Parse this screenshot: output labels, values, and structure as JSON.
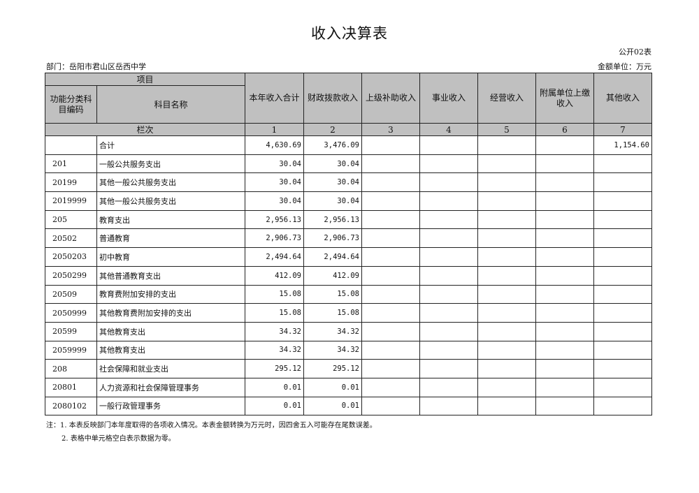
{
  "title": "收入决算表",
  "form_no": "公开02表",
  "department": "部门：岳阳市君山区岳西中学",
  "unit": "金额单位：万元",
  "header": {
    "item": "项目",
    "code": "功能分类科目编码",
    "name": "科目名称",
    "columns": [
      "本年收入合计",
      "财政拨款收入",
      "上级补助收入",
      "事业收入",
      "经营收入",
      "附属单位上缴收入",
      "其他收入"
    ],
    "lanci": "栏次",
    "col_numbers": [
      "1",
      "2",
      "3",
      "4",
      "5",
      "6",
      "7"
    ]
  },
  "rows": [
    {
      "code": "",
      "name": "合计",
      "v": [
        "4,630.69",
        "3,476.09",
        "",
        "",
        "",
        "",
        "1,154.60"
      ]
    },
    {
      "code": "201",
      "name": "一般公共服务支出",
      "v": [
        "30.04",
        "30.04",
        "",
        "",
        "",
        "",
        ""
      ]
    },
    {
      "code": "20199",
      "name": "其他一般公共服务支出",
      "v": [
        "30.04",
        "30.04",
        "",
        "",
        "",
        "",
        ""
      ]
    },
    {
      "code": "2019999",
      "name": "其他一般公共服务支出",
      "v": [
        "30.04",
        "30.04",
        "",
        "",
        "",
        "",
        ""
      ]
    },
    {
      "code": "205",
      "name": "教育支出",
      "v": [
        "2,956.13",
        "2,956.13",
        "",
        "",
        "",
        "",
        ""
      ]
    },
    {
      "code": "20502",
      "name": "普通教育",
      "v": [
        "2,906.73",
        "2,906.73",
        "",
        "",
        "",
        "",
        ""
      ]
    },
    {
      "code": "2050203",
      "name": "初中教育",
      "v": [
        "2,494.64",
        "2,494.64",
        "",
        "",
        "",
        "",
        ""
      ]
    },
    {
      "code": "2050299",
      "name": "其他普通教育支出",
      "v": [
        "412.09",
        "412.09",
        "",
        "",
        "",
        "",
        ""
      ]
    },
    {
      "code": "20509",
      "name": "教育费附加安排的支出",
      "v": [
        "15.08",
        "15.08",
        "",
        "",
        "",
        "",
        ""
      ]
    },
    {
      "code": "2050999",
      "name": "其他教育费附加安排的支出",
      "v": [
        "15.08",
        "15.08",
        "",
        "",
        "",
        "",
        ""
      ]
    },
    {
      "code": "20599",
      "name": "其他教育支出",
      "v": [
        "34.32",
        "34.32",
        "",
        "",
        "",
        "",
        ""
      ]
    },
    {
      "code": "2059999",
      "name": "其他教育支出",
      "v": [
        "34.32",
        "34.32",
        "",
        "",
        "",
        "",
        ""
      ]
    },
    {
      "code": "208",
      "name": "社会保障和就业支出",
      "v": [
        "295.12",
        "295.12",
        "",
        "",
        "",
        "",
        ""
      ]
    },
    {
      "code": "20801",
      "name": "人力资源和社会保障管理事务",
      "v": [
        "0.01",
        "0.01",
        "",
        "",
        "",
        "",
        ""
      ]
    },
    {
      "code": "2080102",
      "name": "一般行政管理事务",
      "v": [
        "0.01",
        "0.01",
        "",
        "",
        "",
        "",
        ""
      ]
    }
  ],
  "notes": [
    "注：1. 本表反映部门本年度取得的各项收入情况。本表金额转换为万元时，因四舍五入可能存在尾数误差。",
    "2. 表格中单元格空白表示数据为零。"
  ]
}
